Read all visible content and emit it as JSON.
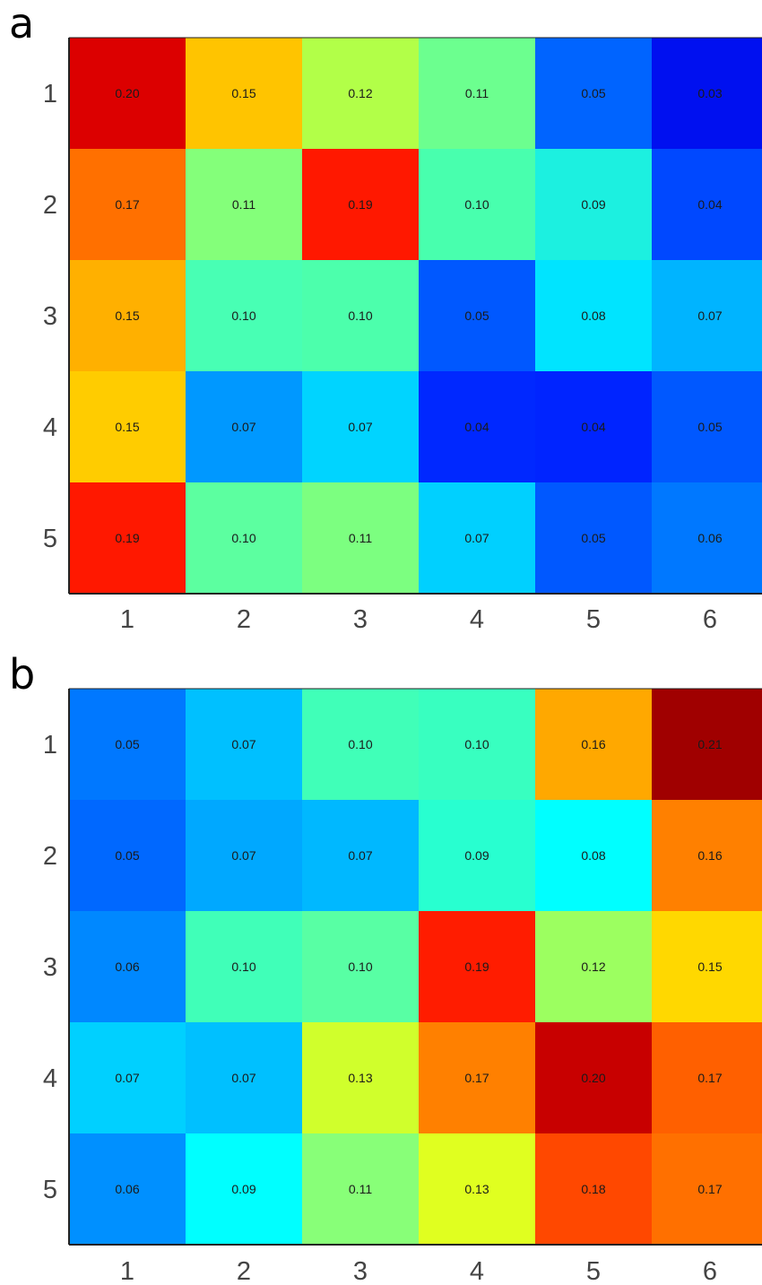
{
  "chart_data": [
    {
      "type": "heatmap",
      "panel_label": "a",
      "x_categories": [
        "1",
        "2",
        "3",
        "4",
        "5",
        "6"
      ],
      "y_categories": [
        "1",
        "2",
        "3",
        "4",
        "5"
      ],
      "values": [
        [
          0.2,
          0.15,
          0.12,
          0.11,
          0.05,
          0.03
        ],
        [
          0.17,
          0.11,
          0.19,
          0.1,
          0.09,
          0.04
        ],
        [
          0.15,
          0.1,
          0.1,
          0.05,
          0.08,
          0.07
        ],
        [
          0.15,
          0.07,
          0.07,
          0.04,
          0.04,
          0.05
        ],
        [
          0.19,
          0.1,
          0.11,
          0.07,
          0.05,
          0.06
        ]
      ],
      "value_labels": [
        [
          "0.20",
          "0.15",
          "0.12",
          "0.11",
          "0.05",
          "0.03"
        ],
        [
          "0.17",
          "0.11",
          "0.19",
          "0.10",
          "0.09",
          "0.04"
        ],
        [
          "0.15",
          "0.10",
          "0.10",
          "0.05",
          "0.08",
          "0.07"
        ],
        [
          "0.15",
          "0.07",
          "0.07",
          "0.04",
          "0.04",
          "0.05"
        ],
        [
          "0.19",
          "0.10",
          "0.11",
          "0.07",
          "0.05",
          "0.06"
        ]
      ],
      "colors": [
        [
          "#dc0000",
          "#ffc400",
          "#b2ff48",
          "#6cff8f",
          "#0064ff",
          "#0010f0"
        ],
        [
          "#ff7000",
          "#84ff7a",
          "#ff1800",
          "#48ffae",
          "#1cf0e0",
          "#0048ff"
        ],
        [
          "#ffb000",
          "#48ffb4",
          "#4cffac",
          "#0058ff",
          "#00e4ff",
          "#00b4ff"
        ],
        [
          "#ffcc00",
          "#0098ff",
          "#00d4ff",
          "#0028ff",
          "#0024ff",
          "#0058ff"
        ],
        [
          "#ff1800",
          "#5cffa0",
          "#7cff80",
          "#00d0ff",
          "#0058ff",
          "#0078ff"
        ]
      ],
      "colormap": "jet"
    },
    {
      "type": "heatmap",
      "panel_label": "b",
      "x_categories": [
        "1",
        "2",
        "3",
        "4",
        "5",
        "6"
      ],
      "y_categories": [
        "1",
        "2",
        "3",
        "4",
        "5"
      ],
      "values": [
        [
          0.05,
          0.07,
          0.1,
          0.1,
          0.16,
          0.21
        ],
        [
          0.05,
          0.07,
          0.07,
          0.09,
          0.08,
          0.16
        ],
        [
          0.06,
          0.1,
          0.1,
          0.19,
          0.12,
          0.15
        ],
        [
          0.07,
          0.07,
          0.13,
          0.17,
          0.2,
          0.17
        ],
        [
          0.06,
          0.09,
          0.11,
          0.13,
          0.18,
          0.17
        ]
      ],
      "value_labels": [
        [
          "0.05",
          "0.07",
          "0.10",
          "0.10",
          "0.16",
          "0.21"
        ],
        [
          "0.05",
          "0.07",
          "0.07",
          "0.09",
          "0.08",
          "0.16"
        ],
        [
          "0.06",
          "0.10",
          "0.10",
          "0.19",
          "0.12",
          "0.15"
        ],
        [
          "0.07",
          "0.07",
          "0.13",
          "0.17",
          "0.20",
          "0.17"
        ],
        [
          "0.06",
          "0.09",
          "0.11",
          "0.13",
          "0.18",
          "0.17"
        ]
      ],
      "colors": [
        [
          "#0078ff",
          "#00c0ff",
          "#40ffb8",
          "#38ffc0",
          "#ffa800",
          "#a00000"
        ],
        [
          "#0068ff",
          "#00a8ff",
          "#00b8ff",
          "#28ffd0",
          "#00ffff",
          "#ff8000"
        ],
        [
          "#0088ff",
          "#40ffb8",
          "#58ffa4",
          "#ff1c00",
          "#9cff60",
          "#ffd800"
        ],
        [
          "#00d0ff",
          "#00c0ff",
          "#d0ff2c",
          "#ff8000",
          "#c80000",
          "#ff6000"
        ],
        [
          "#0090ff",
          "#00ffff",
          "#88ff78",
          "#e0ff20",
          "#ff4800",
          "#ff7000"
        ]
      ],
      "colormap": "jet"
    }
  ]
}
